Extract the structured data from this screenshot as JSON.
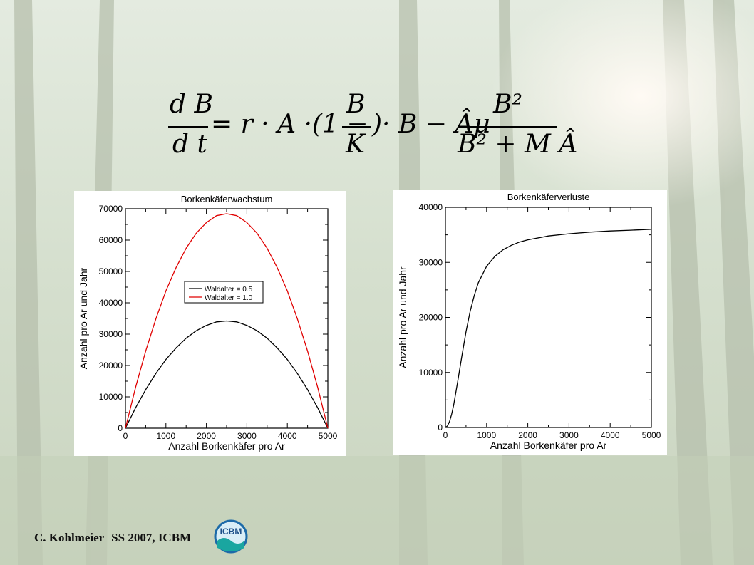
{
  "formula": {
    "lhs_num": "d B",
    "lhs_den": "d t",
    "middle": "= r · A ·(1 −",
    "frac2_num": "B",
    "frac2_den": "K",
    "middle2": ")· B − Âμ",
    "frac3_num": "B²",
    "frac3_den": "B² + M Â"
  },
  "footer": {
    "author": "C. Kohlmeier",
    "course": "SS 2007, ICBM"
  },
  "logo": {
    "text": "ICBM"
  },
  "colors": {
    "black_series": "#000000",
    "red_series": "#e00000"
  },
  "chart_data": [
    {
      "type": "line",
      "title": "Borkenkäferwachstum",
      "xlabel": "Anzahl Borkenkäfer pro Ar",
      "ylabel": "Anzahl pro Ar und Jahr",
      "xlim": [
        0,
        5000
      ],
      "ylim": [
        0,
        70000
      ],
      "xticks": [
        "0",
        "1000",
        "2000",
        "3000",
        "4000",
        "5000"
      ],
      "yticks": [
        "0",
        "10000",
        "20000",
        "30000",
        "40000",
        "50000",
        "60000",
        "70000"
      ],
      "legend_position": "center",
      "series": [
        {
          "name": "Waldalter = 0.5",
          "color": "#000000",
          "x": [
            0,
            250,
            500,
            750,
            1000,
            1250,
            1500,
            1750,
            2000,
            2250,
            2500,
            2750,
            3000,
            3250,
            3500,
            3750,
            4000,
            4250,
            4500,
            4750,
            5000
          ],
          "y": [
            0,
            6500,
            12300,
            17400,
            21900,
            25600,
            28700,
            31100,
            32800,
            33900,
            34200,
            33900,
            32800,
            31100,
            28700,
            25600,
            21900,
            17400,
            12300,
            6500,
            0
          ]
        },
        {
          "name": "Waldalter = 1.0",
          "color": "#e00000",
          "x": [
            0,
            250,
            500,
            750,
            1000,
            1250,
            1500,
            1750,
            2000,
            2250,
            2500,
            2750,
            3000,
            3250,
            3500,
            3750,
            4000,
            4250,
            4500,
            4750,
            5000
          ],
          "y": [
            0,
            13000,
            24600,
            34800,
            43800,
            51200,
            57400,
            62200,
            65600,
            67800,
            68400,
            67800,
            65600,
            62200,
            57400,
            51200,
            43800,
            34800,
            24600,
            13000,
            0
          ]
        }
      ]
    },
    {
      "type": "line",
      "title": "Borkenkäferverluste",
      "xlabel": "Anzahl Borkenkäfer pro Ar",
      "ylabel": "Anzahl pro Ar und Jahr",
      "xlim": [
        0,
        5000
      ],
      "ylim": [
        0,
        40000
      ],
      "xticks": [
        "0",
        "1000",
        "2000",
        "3000",
        "4000",
        "5000"
      ],
      "yticks": [
        "0",
        "10000",
        "20000",
        "30000",
        "40000"
      ],
      "series": [
        {
          "color": "#000000",
          "x": [
            0,
            50,
            100,
            150,
            200,
            300,
            400,
            500,
            600,
            700,
            800,
            1000,
            1200,
            1400,
            1600,
            1800,
            2000,
            2500,
            3000,
            3500,
            4000,
            4500,
            5000
          ],
          "y": [
            0,
            300,
            1100,
            2400,
            4100,
            8400,
            13000,
            17400,
            21100,
            24000,
            26300,
            29300,
            31100,
            32300,
            33100,
            33700,
            34100,
            34800,
            35200,
            35500,
            35700,
            35850,
            36000
          ]
        }
      ]
    }
  ]
}
